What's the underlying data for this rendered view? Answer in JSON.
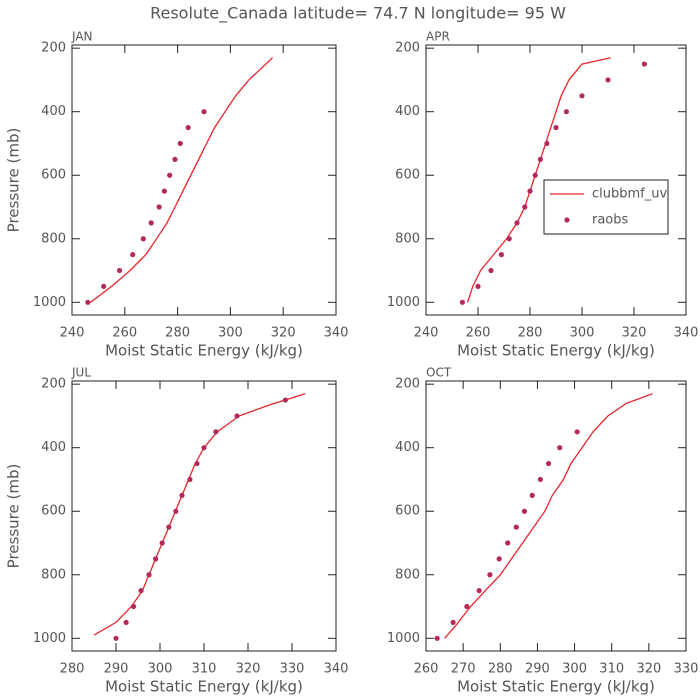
{
  "title": "Resolute_Canada  latitude= 74.7 N longitude= 95 W",
  "chart_data": [
    {
      "type": "line",
      "title": "JAN",
      "x_label": "Moist Static Energy (kJ/kg)",
      "y_label": "Pressure (mb)",
      "xlim": [
        240,
        340
      ],
      "xticks": [
        240,
        260,
        280,
        300,
        320,
        340
      ],
      "ylim": [
        1040,
        190
      ],
      "yticks": [
        200,
        400,
        600,
        800,
        1000
      ],
      "series": [
        {
          "name": "clubbmf_uv",
          "type": "line",
          "color": "#e8242c",
          "x": [
            247,
            255,
            262,
            268,
            272,
            276,
            279,
            282,
            285,
            288,
            291,
            294,
            298,
            302,
            307,
            316
          ],
          "values": [
            1000,
            950,
            900,
            850,
            800,
            750,
            700,
            650,
            600,
            550,
            500,
            450,
            400,
            350,
            300,
            230
          ]
        },
        {
          "name": "raobs",
          "type": "scatter",
          "color": "#b12a5b",
          "x": [
            246,
            252,
            258,
            263,
            267,
            270,
            273,
            275,
            277,
            279,
            281,
            284,
            290
          ],
          "values": [
            1000,
            950,
            900,
            850,
            800,
            750,
            700,
            650,
            600,
            550,
            500,
            450,
            400
          ]
        }
      ]
    },
    {
      "type": "line",
      "title": "APR",
      "x_label": "Moist Static Energy (kJ/kg)",
      "legend": "right",
      "xlim": [
        240,
        340
      ],
      "xticks": [
        240,
        260,
        280,
        300,
        320,
        340
      ],
      "ylim": [
        1040,
        190
      ],
      "yticks": [
        200,
        400,
        600,
        800,
        1000
      ],
      "series": [
        {
          "name": "clubbmf_uv",
          "type": "line",
          "color": "#e8242c",
          "x": [
            256,
            258,
            261,
            266,
            271,
            275,
            278,
            280,
            282,
            284,
            286,
            288,
            290,
            292,
            295,
            300,
            311
          ],
          "values": [
            1000,
            950,
            900,
            850,
            800,
            750,
            700,
            650,
            600,
            550,
            500,
            450,
            400,
            350,
            300,
            250,
            230
          ]
        },
        {
          "name": "raobs",
          "type": "scatter",
          "color": "#b12a5b",
          "x": [
            254,
            260,
            265,
            269,
            272,
            275,
            278,
            280,
            282,
            284,
            286.5,
            290,
            294,
            300,
            310,
            324
          ],
          "values": [
            1000,
            950,
            900,
            850,
            800,
            750,
            700,
            650,
            600,
            550,
            500,
            450,
            400,
            350,
            300,
            250
          ]
        }
      ]
    },
    {
      "type": "line",
      "title": "JUL",
      "x_label": "Moist Static Energy (kJ/kg)",
      "y_label": "Pressure (mb)",
      "xlim": [
        280,
        340
      ],
      "xticks": [
        280,
        290,
        300,
        310,
        320,
        330,
        340
      ],
      "ylim": [
        1040,
        190
      ],
      "yticks": [
        200,
        400,
        600,
        800,
        1000
      ],
      "series": [
        {
          "name": "clubbmf_uv",
          "type": "line",
          "color": "#e8242c",
          "x": [
            285,
            290,
            293.5,
            296,
            297.5,
            299,
            300.5,
            302,
            303.5,
            305,
            306.5,
            308,
            310,
            313,
            318,
            325,
            333
          ],
          "values": [
            990,
            950,
            900,
            850,
            800,
            750,
            700,
            650,
            600,
            550,
            500,
            450,
            400,
            350,
            300,
            265,
            230
          ]
        },
        {
          "name": "raobs",
          "type": "scatter",
          "color": "#b12a5b",
          "x": [
            290,
            292.3,
            294,
            295.7,
            297.5,
            299,
            300.5,
            302,
            303.6,
            305,
            306.8,
            308.4,
            310,
            312.7,
            317.5,
            328.5
          ],
          "values": [
            1000,
            950,
            900,
            850,
            800,
            750,
            700,
            650,
            600,
            550,
            500,
            450,
            400,
            350,
            300,
            250
          ]
        }
      ]
    },
    {
      "type": "line",
      "title": "OCT",
      "x_label": "Moist Static Energy (kJ/kg)",
      "xlim": [
        260,
        330
      ],
      "xticks": [
        260,
        270,
        280,
        290,
        300,
        310,
        320,
        330
      ],
      "ylim": [
        1040,
        190
      ],
      "yticks": [
        200,
        400,
        600,
        800,
        1000
      ],
      "series": [
        {
          "name": "clubbmf_uv",
          "type": "line",
          "color": "#e8242c",
          "x": [
            265,
            268,
            272,
            276,
            280,
            283,
            286,
            289,
            292,
            294,
            297,
            299,
            302,
            305,
            309,
            314,
            321
          ],
          "values": [
            1000,
            960,
            900,
            850,
            800,
            750,
            700,
            650,
            600,
            550,
            500,
            450,
            400,
            350,
            300,
            260,
            230
          ]
        },
        {
          "name": "raobs",
          "type": "scatter",
          "color": "#b12a5b",
          "x": [
            263,
            267.3,
            271,
            274.3,
            277.2,
            279.7,
            282,
            284.3,
            286.5,
            288.6,
            290.8,
            293,
            296,
            300.7
          ],
          "values": [
            1000,
            950,
            900,
            850,
            800,
            750,
            700,
            650,
            600,
            550,
            500,
            450,
            400,
            350
          ]
        }
      ]
    }
  ]
}
